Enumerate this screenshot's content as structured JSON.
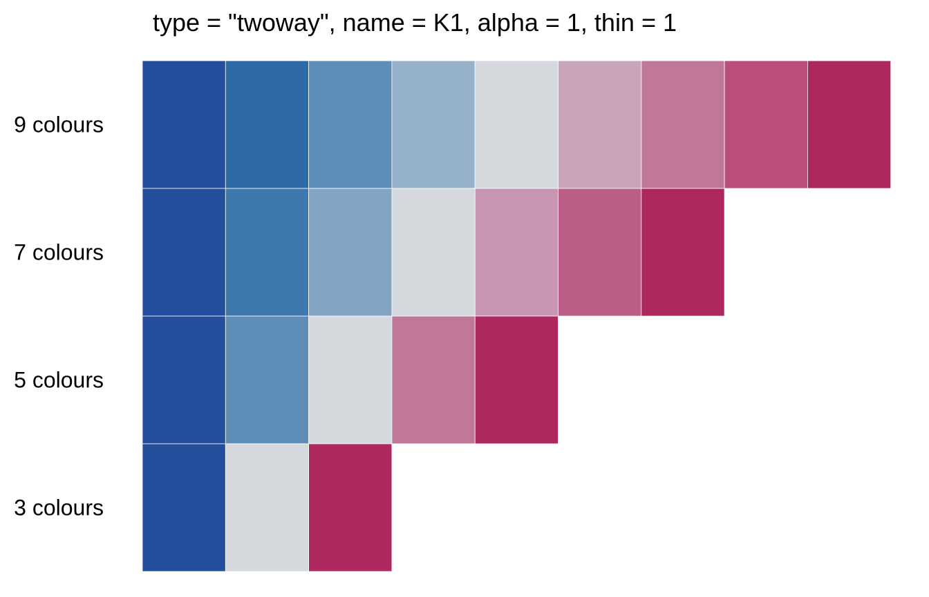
{
  "chart_data": {
    "type": "heatmap",
    "title": "type = \"twoway\", name = K1, alpha = 1, thin = 1",
    "rows": [
      {
        "label": "9 colours",
        "colors": [
          "#234E9C",
          "#2E6AA8",
          "#5E8DB7",
          "#96B2CA",
          "#D5D8DD",
          "#C9A5BC",
          "#C07899",
          "#BA4F7B",
          "#AE2860"
        ]
      },
      {
        "label": "7 colours",
        "colors": [
          "#234E9C",
          "#3D79AE",
          "#82A5C4",
          "#D5D8DD",
          "#C896B2",
          "#BB5E87",
          "#AE2860"
        ]
      },
      {
        "label": "5 colours",
        "colors": [
          "#234E9C",
          "#5E8DB7",
          "#D5D8DD",
          "#C07899",
          "#AE2860"
        ]
      },
      {
        "label": "3 colours",
        "colors": [
          "#234E9C",
          "#D5D8DD",
          "#AE2860"
        ]
      }
    ]
  }
}
